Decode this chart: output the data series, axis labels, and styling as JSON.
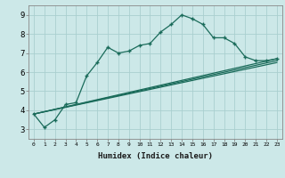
{
  "xlabel": "Humidex (Indice chaleur)",
  "bg_color": "#cce8e8",
  "line_color": "#1a6b5a",
  "grid_color": "#aacfcf",
  "xlim": [
    -0.5,
    23.5
  ],
  "ylim": [
    2.5,
    9.5
  ],
  "xticks": [
    0,
    1,
    2,
    3,
    4,
    5,
    6,
    7,
    8,
    9,
    10,
    11,
    12,
    13,
    14,
    15,
    16,
    17,
    18,
    19,
    20,
    21,
    22,
    23
  ],
  "yticks": [
    3,
    4,
    5,
    6,
    7,
    8,
    9
  ],
  "line1_x": [
    0,
    1,
    2,
    3,
    4,
    5,
    6,
    7,
    8,
    9,
    10,
    11,
    12,
    13,
    14,
    15,
    16,
    17,
    18,
    19,
    20,
    21,
    22,
    23
  ],
  "line1_y": [
    3.8,
    3.1,
    3.5,
    4.3,
    4.4,
    5.8,
    6.5,
    7.3,
    7.0,
    7.1,
    7.4,
    7.5,
    8.1,
    8.5,
    9.0,
    8.8,
    8.5,
    7.8,
    7.8,
    7.5,
    6.8,
    6.6,
    6.6,
    6.7
  ],
  "line2_x": [
    0,
    23
  ],
  "line2_y": [
    3.8,
    6.7
  ],
  "line3_x": [
    0,
    23
  ],
  "line3_y": [
    3.8,
    6.6
  ],
  "line4_x": [
    0,
    23
  ],
  "line4_y": [
    3.8,
    6.5
  ]
}
